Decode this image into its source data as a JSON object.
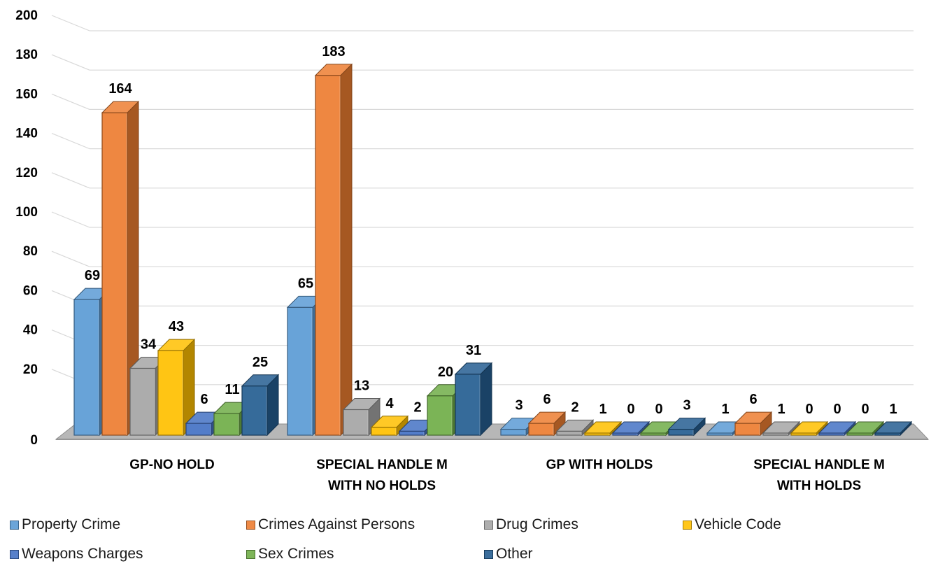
{
  "chart_data": {
    "type": "bar",
    "categories": [
      [
        "GP-NO HOLD"
      ],
      [
        "SPECIAL HANDLE M",
        "WITH NO HOLDS"
      ],
      [
        "GP WITH HOLDS"
      ],
      [
        "SPECIAL HANDLE M",
        "WITH HOLDS"
      ]
    ],
    "series": [
      {
        "name": "Property Crime",
        "values": [
          69,
          65,
          3,
          1
        ],
        "color": "#5b9bd5"
      },
      {
        "name": "Crimes Against Persons",
        "values": [
          164,
          183,
          6,
          6
        ],
        "color": "#ed7d31"
      },
      {
        "name": "Drug Crimes",
        "values": [
          34,
          13,
          2,
          1
        ],
        "color": "#a5a5a5"
      },
      {
        "name": "Vehicle Code",
        "values": [
          43,
          4,
          1,
          0
        ],
        "color": "#ffc000"
      },
      {
        "name": "Weapons Charges",
        "values": [
          6,
          2,
          0,
          0
        ],
        "color": "#4472c4"
      },
      {
        "name": "Sex Crimes",
        "values": [
          11,
          20,
          0,
          0
        ],
        "color": "#70ad47"
      },
      {
        "name": "Other",
        "values": [
          25,
          31,
          3,
          1
        ],
        "color": "#255e91"
      }
    ],
    "yticks": [
      0,
      20,
      40,
      60,
      80,
      100,
      120,
      140,
      160,
      180,
      200
    ],
    "ylim": [
      0,
      200
    ],
    "grid": true,
    "legend_position": "bottom",
    "style": "3d-clustered-column"
  }
}
